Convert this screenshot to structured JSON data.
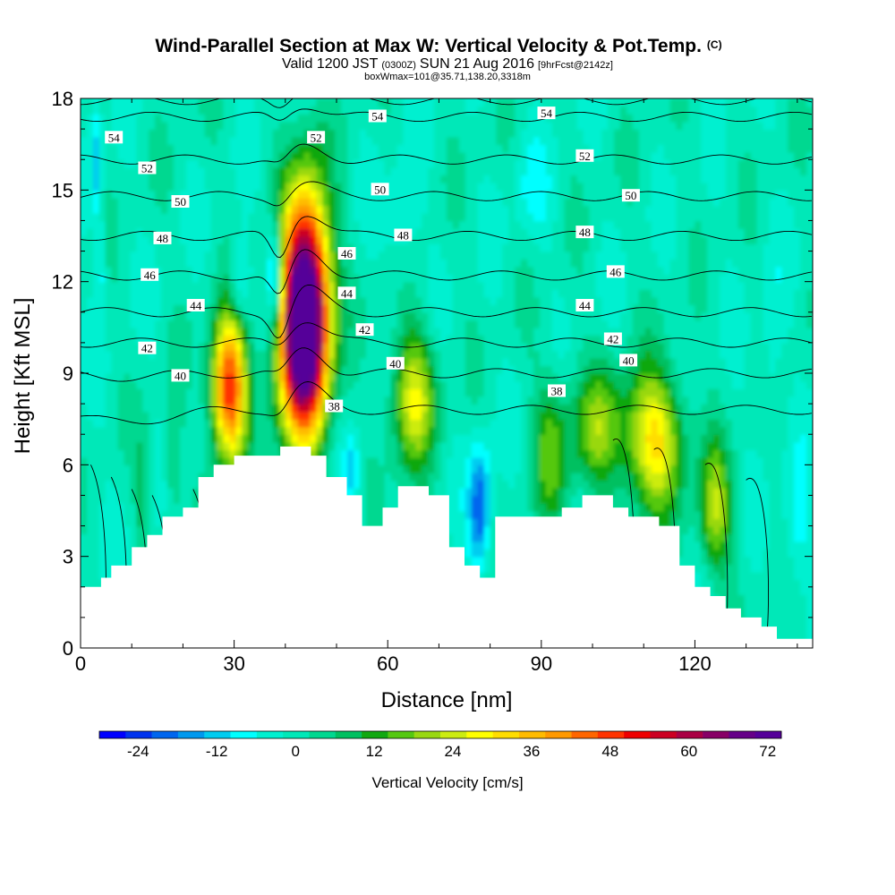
{
  "chart_data": {
    "type": "heatmap",
    "title": "Wind-Parallel Section at Max W: Vertical Velocity & Pot.Temp.",
    "title_mark": "(C)",
    "subtitle_parts": [
      "Valid 1200 JST",
      "(0300Z)",
      "SUN 21 Aug 2016",
      "[9hrFcst@2142z]"
    ],
    "subtitle2": "boxWmax=101@35.71,138.20,3318m",
    "xlabel": "Distance [nm]",
    "ylabel": "Height [Kft MSL]",
    "xlim": [
      0,
      143
    ],
    "ylim": [
      0,
      18
    ],
    "x_ticks": [
      "0",
      "30",
      "60",
      "90",
      "120"
    ],
    "y_ticks": [
      "0",
      "3",
      "6",
      "9",
      "12",
      "15",
      "18"
    ],
    "colorbar": {
      "label": "Vertical Velocity [cm/s]",
      "tick_labels": [
        "-24",
        "-12",
        "0",
        "12",
        "24",
        "36",
        "48",
        "60",
        "72"
      ],
      "tick_values": [
        -24,
        -12,
        0,
        12,
        24,
        36,
        48,
        60,
        72
      ],
      "range": [
        -28,
        76
      ],
      "colors": [
        "#0000ff",
        "#0033ee",
        "#0066ee",
        "#0099ee",
        "#00ccf0",
        "#00ffff",
        "#00f0d0",
        "#00e8b8",
        "#00d890",
        "#00c060",
        "#11a811",
        "#55c811",
        "#99d811",
        "#ccec11",
        "#ffff00",
        "#ffdd00",
        "#ffbb00",
        "#ff9900",
        "#ff6600",
        "#ff3300",
        "#ee0000",
        "#cc0022",
        "#aa0044",
        "#880066",
        "#660088",
        "#550099"
      ]
    },
    "terrain_kft": [
      [
        0,
        2.0
      ],
      [
        4,
        2.0
      ],
      [
        4,
        2.3
      ],
      [
        6,
        2.3
      ],
      [
        6,
        2.7
      ],
      [
        10,
        2.7
      ],
      [
        10,
        3.3
      ],
      [
        13,
        3.3
      ],
      [
        13,
        3.7
      ],
      [
        16,
        3.7
      ],
      [
        16,
        4.3
      ],
      [
        20,
        4.3
      ],
      [
        20,
        4.6
      ],
      [
        23,
        4.6
      ],
      [
        23,
        5.6
      ],
      [
        26,
        5.6
      ],
      [
        26,
        6.0
      ],
      [
        30,
        6.0
      ],
      [
        30,
        6.3
      ],
      [
        39,
        6.3
      ],
      [
        39,
        6.6
      ],
      [
        45,
        6.6
      ],
      [
        45,
        6.3
      ],
      [
        48,
        6.3
      ],
      [
        48,
        5.6
      ],
      [
        52,
        5.6
      ],
      [
        52,
        5.0
      ],
      [
        55,
        5.0
      ],
      [
        55,
        4.0
      ],
      [
        59,
        4.0
      ],
      [
        59,
        4.6
      ],
      [
        62,
        4.6
      ],
      [
        62,
        5.3
      ],
      [
        68,
        5.3
      ],
      [
        68,
        5.0
      ],
      [
        72,
        5.0
      ],
      [
        72,
        3.3
      ],
      [
        75,
        3.3
      ],
      [
        75,
        2.7
      ],
      [
        78,
        2.7
      ],
      [
        78,
        2.3
      ],
      [
        81,
        2.3
      ],
      [
        81,
        4.3
      ],
      [
        94,
        4.3
      ],
      [
        94,
        4.6
      ],
      [
        98,
        4.6
      ],
      [
        98,
        5.0
      ],
      [
        104,
        5.0
      ],
      [
        104,
        4.6
      ],
      [
        107,
        4.6
      ],
      [
        107,
        4.3
      ],
      [
        113,
        4.3
      ],
      [
        113,
        4.0
      ],
      [
        117,
        4.0
      ],
      [
        117,
        2.7
      ],
      [
        120,
        2.7
      ],
      [
        120,
        2.0
      ],
      [
        123,
        2.0
      ],
      [
        123,
        1.7
      ],
      [
        126,
        1.7
      ],
      [
        126,
        1.3
      ],
      [
        129,
        1.3
      ],
      [
        129,
        1.0
      ],
      [
        133,
        1.0
      ],
      [
        133,
        0.7
      ],
      [
        136,
        0.7
      ],
      [
        136,
        0.3
      ],
      [
        143,
        0.3
      ]
    ],
    "w_cells": [
      {
        "x": 44,
        "z": 11.5,
        "sx": 3.2,
        "sz": 2.6,
        "amp": 75
      },
      {
        "x": 43,
        "z": 9.5,
        "sx": 3.5,
        "sz": 2.0,
        "amp": 35
      },
      {
        "x": 29,
        "z": 8.5,
        "sx": 2.4,
        "sz": 1.7,
        "amp": 52
      },
      {
        "x": 65,
        "z": 8.2,
        "sx": 3.0,
        "sz": 1.6,
        "amp": 26
      },
      {
        "x": 112,
        "z": 6.8,
        "sx": 4.0,
        "sz": 1.6,
        "amp": 32
      },
      {
        "x": 101,
        "z": 7.2,
        "sx": 3.5,
        "sz": 1.4,
        "amp": 18
      },
      {
        "x": 92,
        "z": 6.5,
        "sx": 2.5,
        "sz": 1.7,
        "amp": 15
      },
      {
        "x": 124,
        "z": 4.5,
        "sx": 2.2,
        "sz": 1.5,
        "amp": 22
      },
      {
        "x": 38,
        "z": 12.2,
        "sx": 1.1,
        "sz": 1.2,
        "amp": -24
      },
      {
        "x": 31,
        "z": 12.0,
        "sx": 1.4,
        "sz": 1.0,
        "amp": -12
      },
      {
        "x": 78,
        "z": 4.6,
        "sx": 1.5,
        "sz": 1.4,
        "amp": -22
      },
      {
        "x": 53,
        "z": 5.8,
        "sx": 1.2,
        "sz": 0.8,
        "amp": -12
      },
      {
        "x": 3,
        "z": 16,
        "sx": 0.8,
        "sz": 1.5,
        "amp": -12
      },
      {
        "x": 4,
        "z": 12.5,
        "sx": 0.7,
        "sz": 1.2,
        "amp": -8
      },
      {
        "x": 135,
        "z": 10,
        "sx": 1.5,
        "sz": 2.0,
        "amp": -6
      },
      {
        "x": 140,
        "z": 4.0,
        "sx": 2.0,
        "sz": 1.6,
        "amp": -8
      },
      {
        "x": 18,
        "z": 6.2,
        "sx": 1.2,
        "sz": 1.6,
        "amp": 8
      },
      {
        "x": 12,
        "z": 5.0,
        "sx": 1.0,
        "sz": 1.6,
        "amp": 8
      },
      {
        "x": 63,
        "z": 14,
        "sx": 2.2,
        "sz": 1.4,
        "amp": -7
      },
      {
        "x": 88,
        "z": 15,
        "sx": 2.6,
        "sz": 1.2,
        "amp": -6
      }
    ],
    "theta_levels": [
      38,
      40,
      42,
      44,
      46,
      48,
      50,
      52,
      54
    ],
    "theta_labels": [
      {
        "x": 6.5,
        "z": 16.7,
        "t": "54"
      },
      {
        "x": 58,
        "z": 17.4,
        "t": "54"
      },
      {
        "x": 91,
        "z": 17.5,
        "t": "54"
      },
      {
        "x": 13,
        "z": 15.7,
        "t": "52"
      },
      {
        "x": 46,
        "z": 16.7,
        "t": "52"
      },
      {
        "x": 98.5,
        "z": 16.1,
        "t": "52"
      },
      {
        "x": 19.5,
        "z": 14.6,
        "t": "50"
      },
      {
        "x": 58.5,
        "z": 15.0,
        "t": "50"
      },
      {
        "x": 107.5,
        "z": 14.8,
        "t": "50"
      },
      {
        "x": 16,
        "z": 13.4,
        "t": "48"
      },
      {
        "x": 63,
        "z": 13.5,
        "t": "48"
      },
      {
        "x": 98.5,
        "z": 13.6,
        "t": "48"
      },
      {
        "x": 13.5,
        "z": 12.2,
        "t": "46"
      },
      {
        "x": 52,
        "z": 12.9,
        "t": "46"
      },
      {
        "x": 104.5,
        "z": 12.3,
        "t": "46"
      },
      {
        "x": 22.5,
        "z": 11.2,
        "t": "44"
      },
      {
        "x": 52,
        "z": 11.6,
        "t": "44"
      },
      {
        "x": 98.5,
        "z": 11.2,
        "t": "44"
      },
      {
        "x": 13,
        "z": 9.8,
        "t": "42"
      },
      {
        "x": 55.5,
        "z": 10.4,
        "t": "42"
      },
      {
        "x": 104,
        "z": 10.1,
        "t": "42"
      },
      {
        "x": 19.5,
        "z": 8.9,
        "t": "40"
      },
      {
        "x": 61.5,
        "z": 9.3,
        "t": "40"
      },
      {
        "x": 107,
        "z": 9.4,
        "t": "40"
      },
      {
        "x": 49.5,
        "z": 7.9,
        "t": "38"
      },
      {
        "x": 93,
        "z": 8.4,
        "t": "38"
      }
    ]
  }
}
